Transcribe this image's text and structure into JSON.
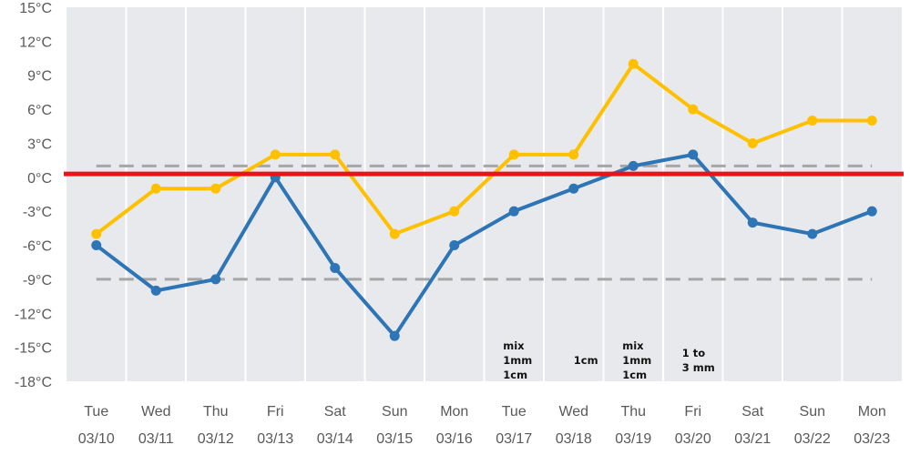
{
  "chart_data": {
    "type": "line",
    "title": "",
    "xlabel": "",
    "ylabel": "",
    "ylim": [
      -18,
      15
    ],
    "y_step": 3,
    "y_unit": "°C",
    "grid": "vertical",
    "categories": [
      {
        "day": "Tue",
        "date": "03/10"
      },
      {
        "day": "Wed",
        "date": "03/11"
      },
      {
        "day": "Thu",
        "date": "03/12"
      },
      {
        "day": "Fri",
        "date": "03/13"
      },
      {
        "day": "Sat",
        "date": "03/14"
      },
      {
        "day": "Sun",
        "date": "03/15"
      },
      {
        "day": "Mon",
        "date": "03/16"
      },
      {
        "day": "Tue",
        "date": "03/17"
      },
      {
        "day": "Wed",
        "date": "03/18"
      },
      {
        "day": "Thu",
        "date": "03/19"
      },
      {
        "day": "Fri",
        "date": "03/20"
      },
      {
        "day": "Sat",
        "date": "03/21"
      },
      {
        "day": "Sun",
        "date": "03/22"
      },
      {
        "day": "Mon",
        "date": "03/23"
      }
    ],
    "series": [
      {
        "color": "#FFC000",
        "values": [
          -5,
          -1,
          -1,
          2,
          2,
          -5,
          -3,
          2,
          2,
          10,
          6,
          3,
          5,
          5
        ]
      },
      {
        "color": "#2E75B6",
        "values": [
          -6,
          -10,
          -9,
          0,
          -8,
          -14,
          -6,
          -3,
          -1,
          1,
          2,
          -4,
          -5,
          -3
        ]
      }
    ],
    "reference_lines": [
      {
        "value": 0.3,
        "color": "#E8141B",
        "style": "solid"
      },
      {
        "value": 1,
        "color": "#A6A6A6",
        "style": "dashed"
      },
      {
        "value": -9,
        "color": "#A6A6A6",
        "style": "dashed"
      }
    ],
    "annotations": [
      {
        "category_index": 7,
        "lines": [
          "mix",
          "1mm",
          "1cm"
        ]
      },
      {
        "category_index": 8,
        "lines": [
          "1cm"
        ]
      },
      {
        "category_index": 9,
        "lines": [
          "mix",
          "1mm",
          "1cm"
        ]
      },
      {
        "category_index": 10,
        "lines": [
          "1 to",
          "3 mm"
        ]
      }
    ]
  }
}
